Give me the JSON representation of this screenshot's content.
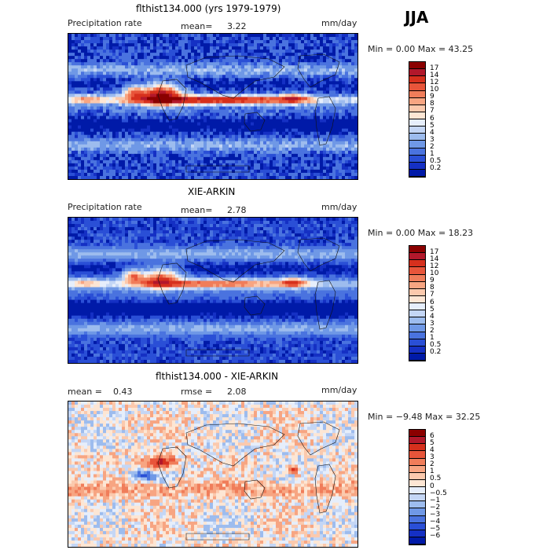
{
  "season": "JJA",
  "panels": [
    {
      "title": "flthist134.000 (yrs 1979-1979)",
      "left_label": "Precipitation rate",
      "mid_label": "mean=",
      "mid_value": "3.22",
      "right_label": "",
      "right_value": "",
      "units": "mm/day",
      "minmax_text": "Min =     0.00  Max =   43.25"
    },
    {
      "title": "XIE-ARKIN",
      "left_label": "Precipitation rate",
      "mid_label": "mean=",
      "mid_value": "2.78",
      "right_label": "",
      "right_value": "",
      "units": "mm/day",
      "minmax_text": "Min =     0.00  Max =   18.23"
    },
    {
      "title": "flthist134.000 - XIE-ARKIN",
      "left_label": "mean =",
      "left_value": "0.43",
      "mid_label": "rmse =",
      "mid_value": "2.08",
      "units": "mm/day",
      "minmax_text": "Min =  −9.48  Max =   32.25"
    }
  ],
  "colorbars": {
    "precip": {
      "labels": [
        "17",
        "14",
        "12",
        "10",
        "9",
        "8",
        "7",
        "6",
        "5",
        "4",
        "3",
        "2",
        "1",
        "0.5",
        "0.2"
      ],
      "colors": [
        "#8b0000",
        "#b2182b",
        "#d6301d",
        "#e8553a",
        "#f07d5a",
        "#f7a582",
        "#fbc9ad",
        "#fde6d4",
        "#e6eefb",
        "#c4d6f5",
        "#9dbcee",
        "#6f98e6",
        "#4a73df",
        "#2a4fd6",
        "#1530c4",
        "#001aa8"
      ]
    },
    "diff": {
      "labels": [
        "6",
        "5",
        "4",
        "3",
        "2",
        "1",
        "0.5",
        "0",
        "−0.5",
        "−1",
        "−2",
        "−3",
        "−4",
        "−5",
        "−6"
      ],
      "colors": [
        "#8b0000",
        "#b2182b",
        "#d6301d",
        "#e8553a",
        "#f07d5a",
        "#f7a582",
        "#fbc9ad",
        "#fde6d4",
        "#e6eefb",
        "#c4d6f5",
        "#9dbcee",
        "#6f98e6",
        "#4a73df",
        "#2a4fd6",
        "#1530c4",
        "#001aa8"
      ]
    }
  },
  "chart_data": [
    {
      "type": "heatmap",
      "title": "flthist134.000 (yrs 1979-1979)",
      "variable": "Precipitation rate",
      "units": "mm/day",
      "mean": 3.22,
      "min": 0.0,
      "max": 43.25,
      "season": "JJA",
      "contour_levels": [
        0.2,
        0.5,
        1,
        2,
        3,
        4,
        5,
        6,
        7,
        8,
        9,
        10,
        12,
        14,
        17
      ]
    },
    {
      "type": "heatmap",
      "title": "XIE-ARKIN",
      "variable": "Precipitation rate",
      "units": "mm/day",
      "mean": 2.78,
      "min": 0.0,
      "max": 18.23,
      "season": "JJA",
      "contour_levels": [
        0.2,
        0.5,
        1,
        2,
        3,
        4,
        5,
        6,
        7,
        8,
        9,
        10,
        12,
        14,
        17
      ]
    },
    {
      "type": "heatmap",
      "title": "flthist134.000 - XIE-ARKIN",
      "units": "mm/day",
      "mean": 0.43,
      "rmse": 2.08,
      "min": -9.48,
      "max": 32.25,
      "season": "JJA",
      "contour_levels": [
        -6,
        -5,
        -4,
        -3,
        -2,
        -1,
        -0.5,
        0,
        0.5,
        1,
        2,
        3,
        4,
        5,
        6
      ]
    }
  ]
}
